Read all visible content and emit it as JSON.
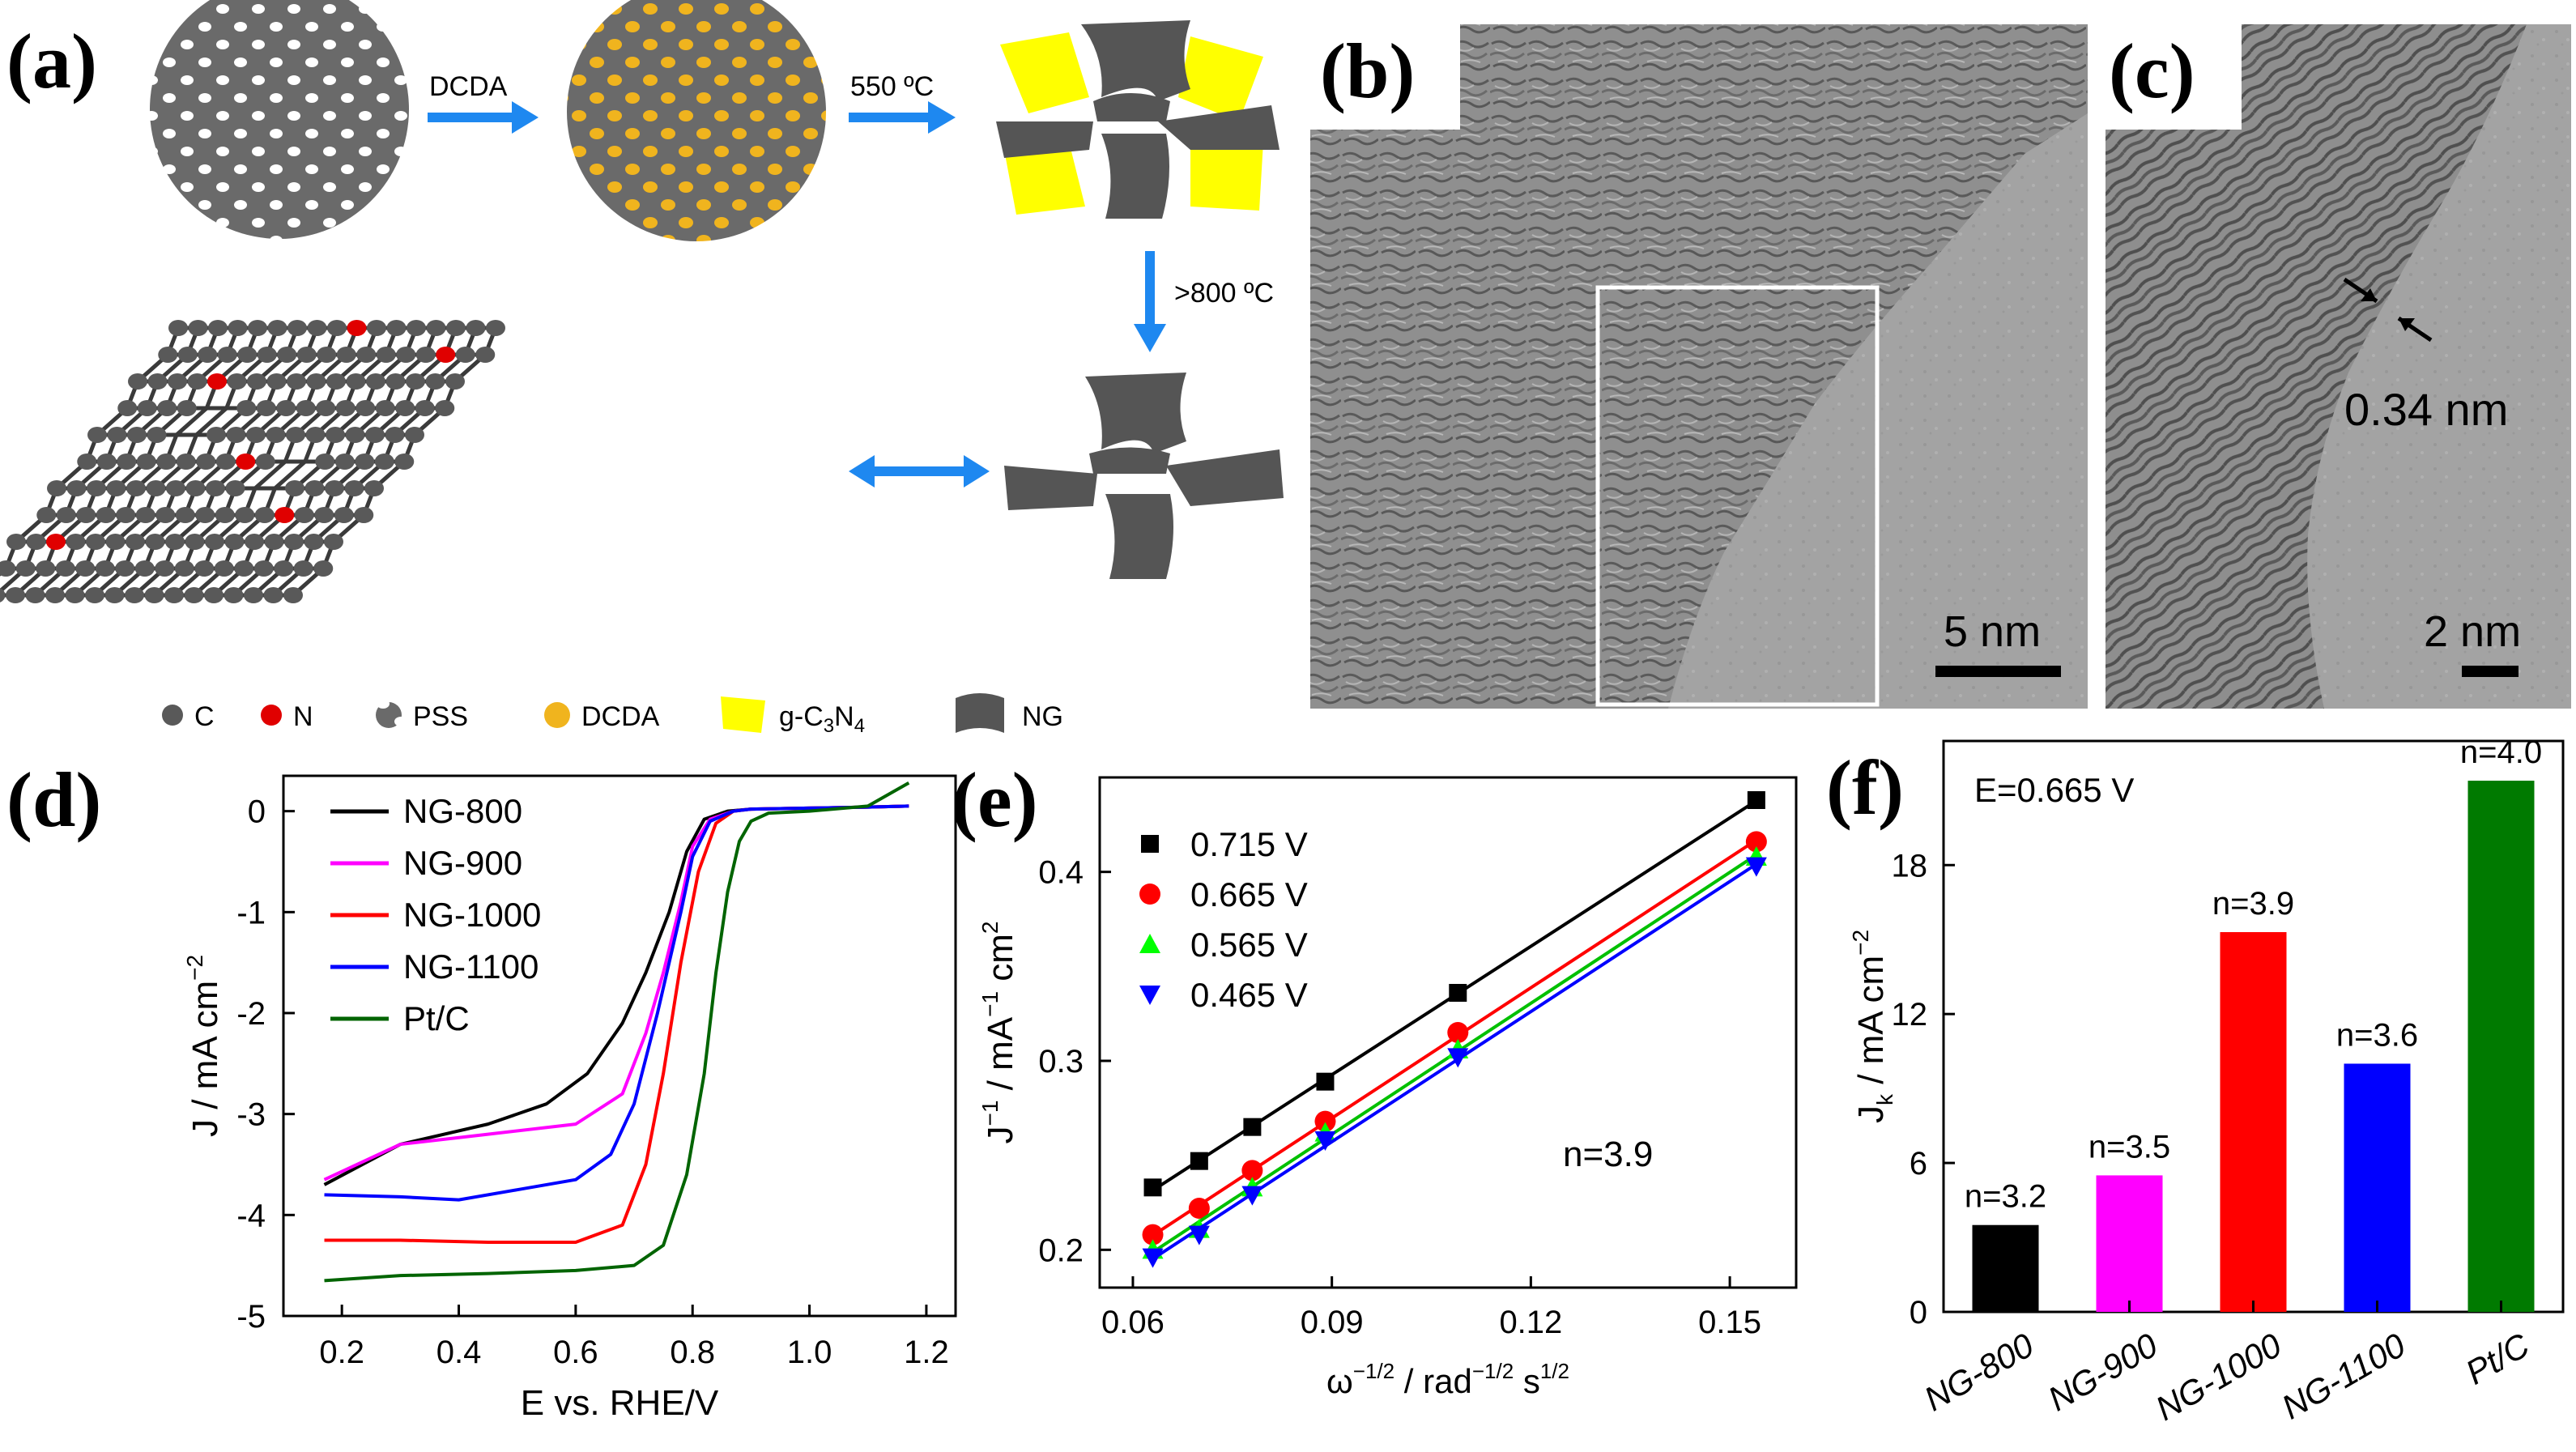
{
  "panels": {
    "a": {
      "label": "(a)",
      "step1_label": "DCDA",
      "step2_label": "550 ºC",
      "step3_label": ">800 ºC",
      "legend": {
        "c": "C",
        "n": "N",
        "pss": "PSS",
        "dcda": "DCDA",
        "gcn_prefix": "g-C",
        "gcn_sub1": "3",
        "gcn_mid": "N",
        "gcn_sub2": "4",
        "ng": "NG"
      },
      "colors": {
        "carbon": "#595959",
        "nitrogen": "#e00000",
        "dcda": "#f0b41e",
        "gc3n4": "#ffff00",
        "arrow": "#1e88f0"
      }
    },
    "b": {
      "label": "(b)",
      "scale_bar": "5 nm"
    },
    "c": {
      "label": "(c)",
      "scale_bar": "2 nm",
      "lattice_spacing": "0.34 nm"
    }
  },
  "chart_data": [
    {
      "panel": "(d)",
      "type": "line",
      "xlabel": "E vs. RHE/V",
      "ylabel": "J / mA cm",
      "ylabel_sup": "−2",
      "xlim": [
        0.1,
        1.25
      ],
      "ylim": [
        -5,
        0.35
      ],
      "xticks": [
        "0.2",
        "0.4",
        "0.6",
        "0.8",
        "1.0",
        "1.2"
      ],
      "yticks": [
        "-5",
        "-4",
        "-3",
        "-2",
        "-1",
        "0"
      ],
      "legend_position": "top-left",
      "series": [
        {
          "name": "NG-800",
          "color": "#000000",
          "x": [
            0.17,
            0.3,
            0.45,
            0.55,
            0.62,
            0.68,
            0.72,
            0.76,
            0.79,
            0.82,
            0.86,
            0.9,
            1.0,
            1.1,
            1.17
          ],
          "y": [
            -3.7,
            -3.3,
            -3.1,
            -2.9,
            -2.6,
            -2.1,
            -1.6,
            -1.0,
            -0.4,
            -0.08,
            0.0,
            0.02,
            0.03,
            0.04,
            0.05
          ]
        },
        {
          "name": "NG-900",
          "color": "#ff00ff",
          "x": [
            0.17,
            0.3,
            0.45,
            0.6,
            0.68,
            0.72,
            0.75,
            0.78,
            0.8,
            0.83,
            0.87,
            0.9,
            1.0,
            1.1,
            1.17
          ],
          "y": [
            -3.65,
            -3.3,
            -3.2,
            -3.1,
            -2.8,
            -2.2,
            -1.6,
            -0.9,
            -0.35,
            -0.08,
            0.0,
            0.02,
            0.03,
            0.04,
            0.05
          ]
        },
        {
          "name": "NG-1000",
          "color": "#ff0000",
          "x": [
            0.17,
            0.3,
            0.45,
            0.6,
            0.68,
            0.72,
            0.75,
            0.78,
            0.81,
            0.84,
            0.87,
            0.9,
            1.0,
            1.1,
            1.17
          ],
          "y": [
            -4.25,
            -4.25,
            -4.27,
            -4.27,
            -4.1,
            -3.5,
            -2.6,
            -1.5,
            -0.6,
            -0.12,
            0.0,
            0.02,
            0.03,
            0.04,
            0.05
          ]
        },
        {
          "name": "NG-1100",
          "color": "#0000ff",
          "x": [
            0.17,
            0.3,
            0.4,
            0.5,
            0.6,
            0.66,
            0.7,
            0.74,
            0.78,
            0.8,
            0.83,
            0.87,
            0.9,
            1.0,
            1.1,
            1.17
          ],
          "y": [
            -3.8,
            -3.82,
            -3.85,
            -3.75,
            -3.65,
            -3.4,
            -2.9,
            -2.0,
            -1.0,
            -0.45,
            -0.1,
            0.0,
            0.02,
            0.03,
            0.04,
            0.05
          ]
        },
        {
          "name": "Pt/C",
          "color": "#006400",
          "x": [
            0.17,
            0.3,
            0.45,
            0.6,
            0.7,
            0.75,
            0.79,
            0.82,
            0.84,
            0.86,
            0.88,
            0.9,
            0.93,
            1.0,
            1.1,
            1.17
          ],
          "y": [
            -4.65,
            -4.6,
            -4.58,
            -4.55,
            -4.5,
            -4.3,
            -3.6,
            -2.6,
            -1.6,
            -0.8,
            -0.3,
            -0.1,
            -0.02,
            0.0,
            0.05,
            0.28
          ]
        }
      ]
    },
    {
      "panel": "(e)",
      "type": "scatter",
      "xlabel": "ω / rad s",
      "xlabel_sup1": "−1/2",
      "xlabel_sup2": "−1/2",
      "xlabel_sup3": "1/2",
      "ylabel": "J / mA cm",
      "ylabel_sup1": "−1",
      "ylabel_sup2": "−1",
      "ylabel_sup3": "2",
      "annotation": "n=3.9",
      "xlim": [
        0.055,
        0.16
      ],
      "ylim": [
        0.18,
        0.45
      ],
      "xticks": [
        "0.06",
        "0.09",
        "0.12",
        "0.15"
      ],
      "yticks": [
        "0.2",
        "0.3",
        "0.4"
      ],
      "x": [
        0.063,
        0.07,
        0.078,
        0.089,
        0.109,
        0.154
      ],
      "series": [
        {
          "name": "0.715 V",
          "color": "#000000",
          "marker": "square",
          "values": [
            0.233,
            0.247,
            0.265,
            0.289,
            0.336,
            0.438
          ]
        },
        {
          "name": "0.665 V",
          "color": "#ff0000",
          "marker": "circle",
          "values": [
            0.208,
            0.222,
            0.242,
            0.268,
            0.315,
            0.416
          ]
        },
        {
          "name": "0.565 V",
          "color": "#00ff00",
          "marker": "triangle-up",
          "values": [
            0.2,
            0.211,
            0.233,
            0.262,
            0.306,
            0.408
          ]
        },
        {
          "name": "0.465 V",
          "color": "#0000ff",
          "marker": "triangle-down",
          "values": [
            0.196,
            0.208,
            0.229,
            0.258,
            0.302,
            0.403
          ]
        }
      ]
    },
    {
      "panel": "(f)",
      "type": "bar",
      "annotation": "E=0.665 V",
      "ylabel": "J / mA cm",
      "ylabel_sub": "k",
      "ylabel_sup": "−2",
      "ylim": [
        0,
        23
      ],
      "yticks": [
        "0",
        "6",
        "12",
        "18"
      ],
      "categories": [
        "NG-800",
        "NG-900",
        "NG-1000",
        "NG-1100",
        "Pt/C"
      ],
      "values": [
        3.5,
        5.5,
        15.3,
        10.0,
        21.4
      ],
      "bar_labels": [
        "n=3.2",
        "n=3.5",
        "n=3.9",
        "n=3.6",
        "n=4.0"
      ],
      "colors": [
        "#000000",
        "#ff00ff",
        "#ff0000",
        "#0000ff",
        "#007a00"
      ]
    }
  ]
}
